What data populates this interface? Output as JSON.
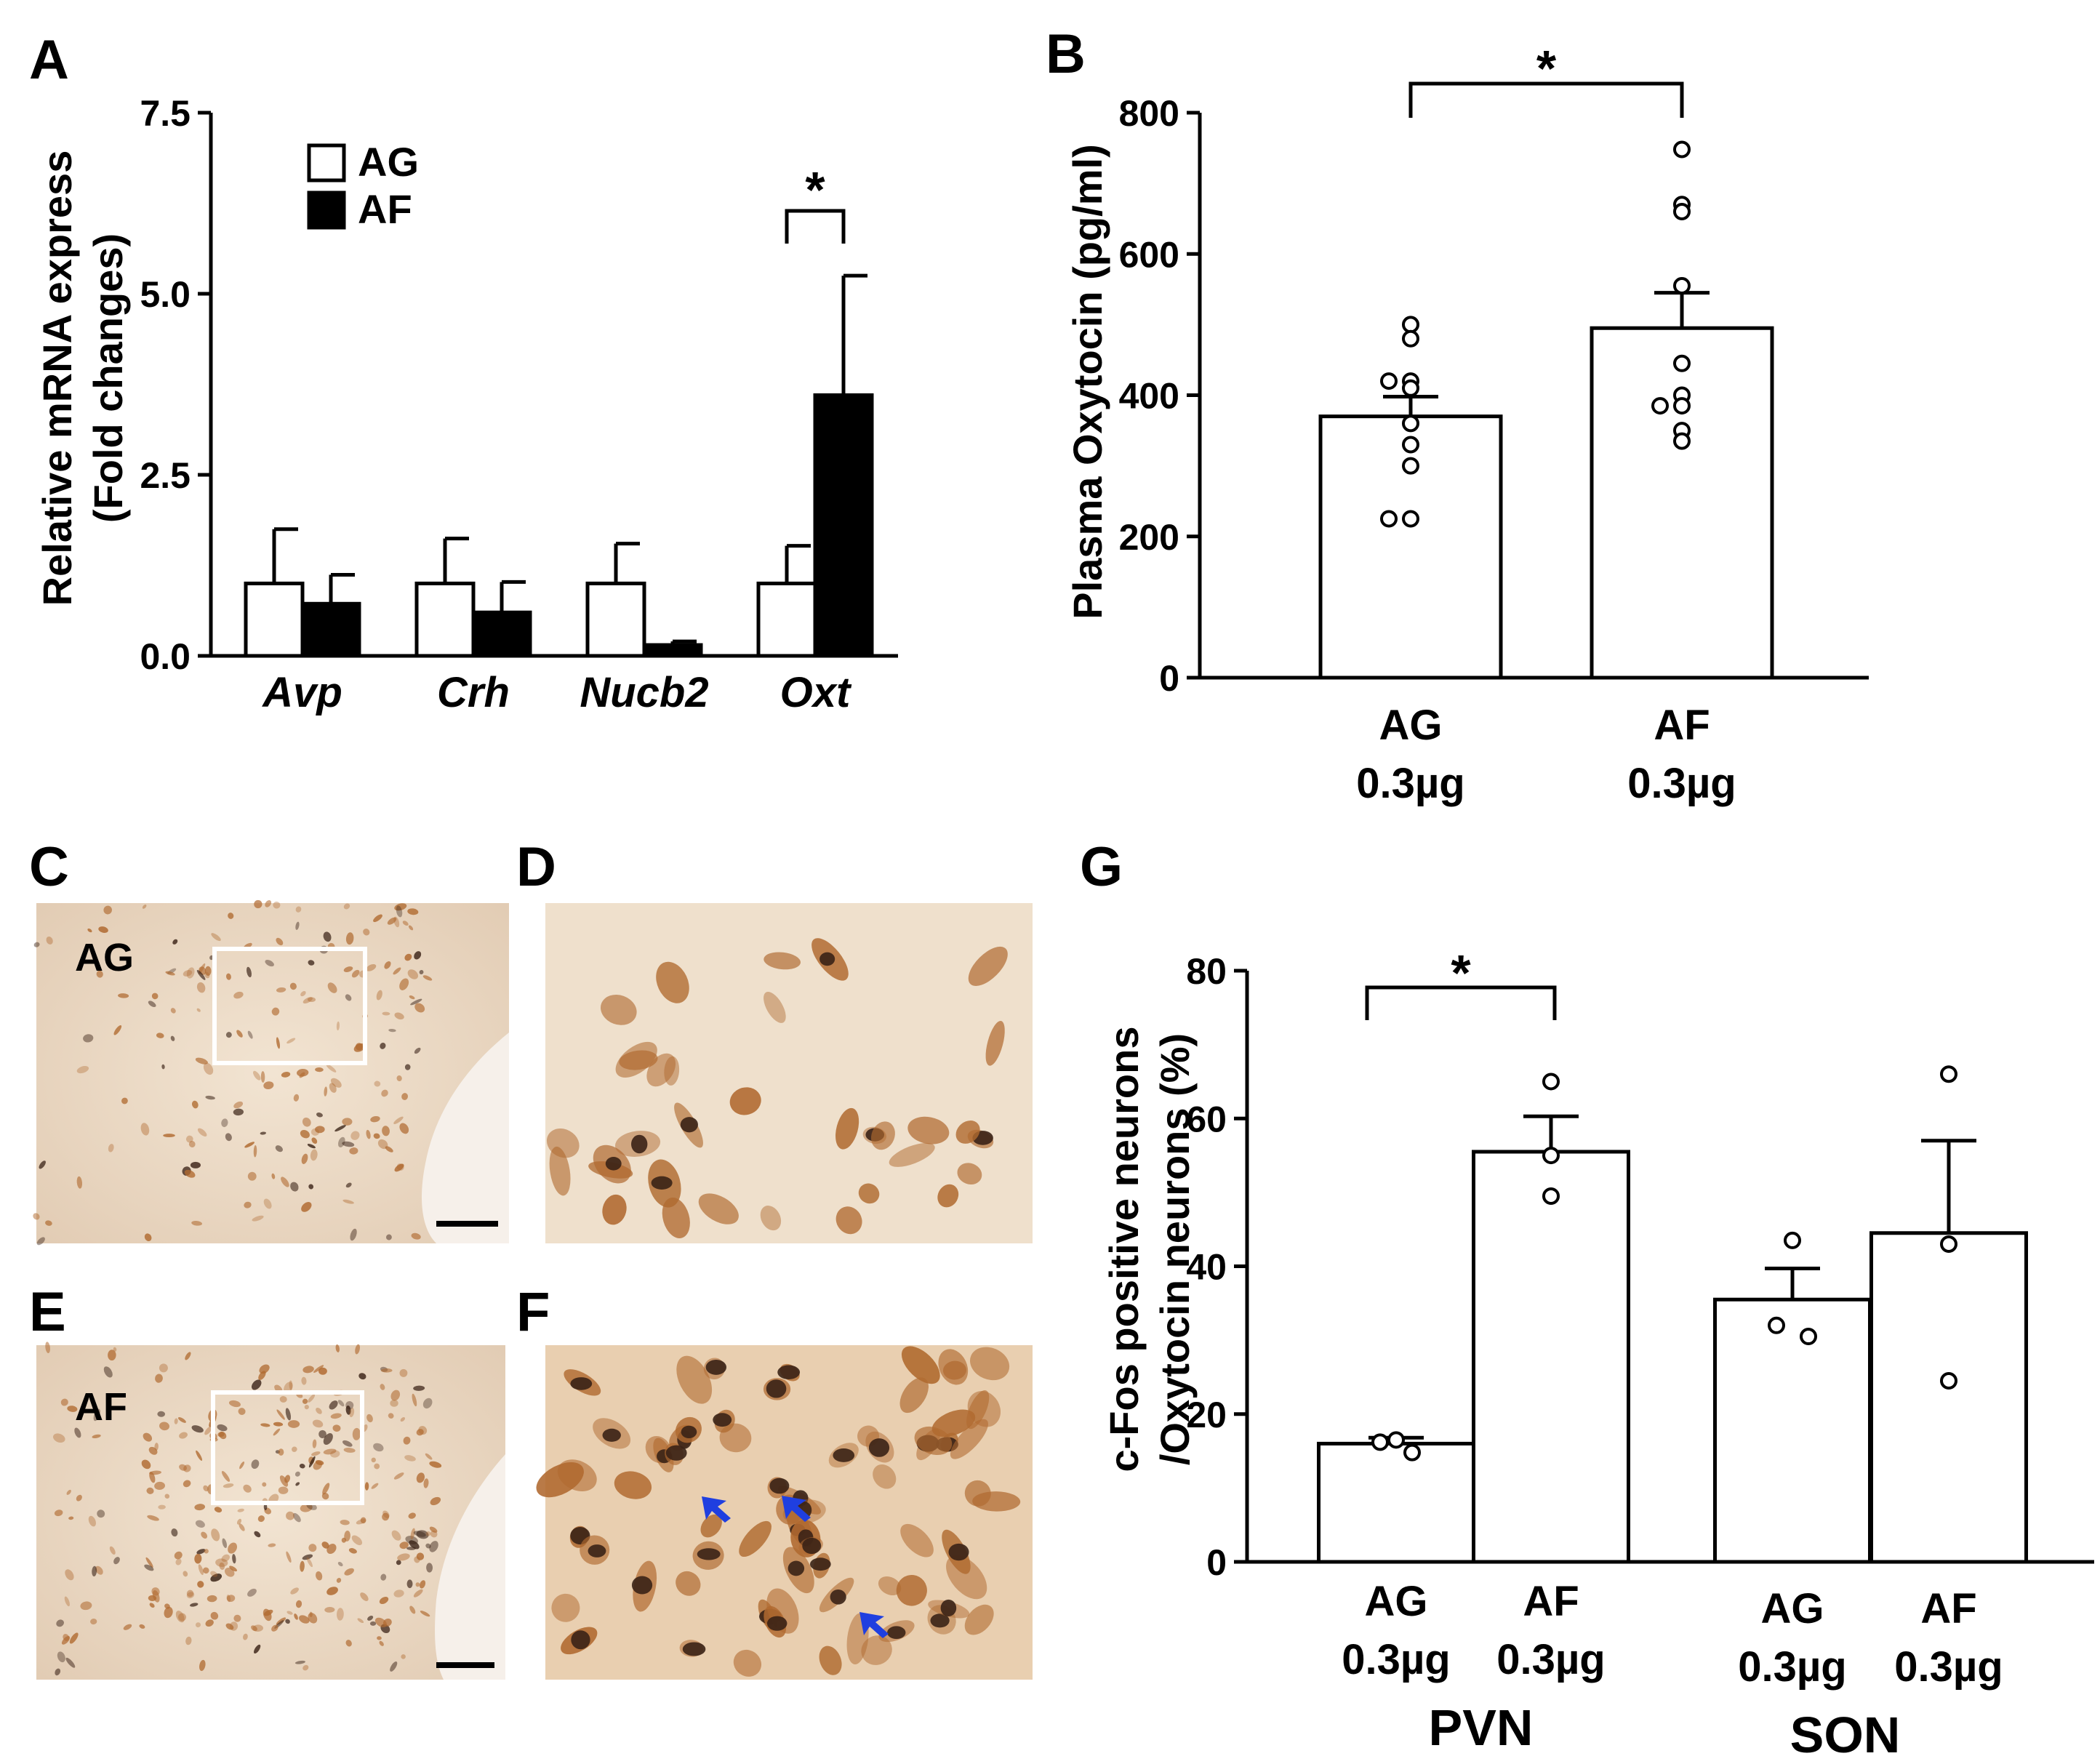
{
  "panels": {
    "A": "A",
    "B": "B",
    "C": "C",
    "D": "D",
    "E": "E",
    "F": "F",
    "G": "G"
  },
  "colors": {
    "ink": "#000000",
    "tissue_background": "#e8d6c2",
    "tissue_light": "#f0e2d0",
    "neuron_stain": "#b06a30",
    "nucleus_stain": "#3a2216",
    "arrow": "#1f3fe0",
    "frame": "#ffffff"
  },
  "micrographs": {
    "C": {
      "label": "AG",
      "has_inset_box": true,
      "has_scalebar": true
    },
    "D": {
      "label": "",
      "has_inset_box": false,
      "has_scalebar": false
    },
    "E": {
      "label": "AF",
      "has_inset_box": true,
      "has_scalebar": true
    },
    "F": {
      "label": "",
      "has_inset_box": false,
      "has_scalebar": false,
      "arrows": 3,
      "arrow_icon": "blue-arrowhead-icon"
    }
  },
  "chart_data": [
    {
      "panel": "A",
      "type": "bar",
      "ylabel_line1": "Relative mRNA express",
      "ylabel_line2": "(Fold changes)",
      "ylim": [
        0,
        7.5
      ],
      "yticks": [
        "0.0",
        "2.5",
        "5.0",
        "7.5"
      ],
      "ytick_values": [
        0,
        2.5,
        5.0,
        7.5
      ],
      "categories": [
        "Avp",
        "Crh",
        "Nucb2",
        "Oxt"
      ],
      "legend": [
        "AG",
        "AF"
      ],
      "legend_position": "top-left",
      "series": [
        {
          "name": "AG",
          "color": "#ffffff",
          "values": [
            1.0,
            1.0,
            1.0,
            1.0
          ],
          "errors": [
            0.75,
            0.62,
            0.55,
            0.52
          ]
        },
        {
          "name": "AF",
          "color": "#000000",
          "values": [
            0.72,
            0.6,
            0.15,
            3.6
          ],
          "errors": [
            0.4,
            0.42,
            0.05,
            1.65
          ]
        }
      ],
      "significance": [
        {
          "category": "Oxt",
          "label": "*"
        }
      ]
    },
    {
      "panel": "B",
      "type": "bar",
      "ylabel": "Plasma Oxytocin  (pg/ml)",
      "ylim": [
        0,
        800
      ],
      "yticks": [
        "0",
        "200",
        "400",
        "600",
        "800"
      ],
      "ytick_values": [
        0,
        200,
        400,
        600,
        800
      ],
      "categories": [
        {
          "line1": "AG",
          "line2": "0.3µg"
        },
        {
          "line1": "AF",
          "line2": "0.3µg"
        }
      ],
      "values": [
        370,
        495
      ],
      "errors": [
        28,
        50
      ],
      "points": [
        [
          500,
          480,
          420,
          420,
          410,
          360,
          330,
          300,
          225,
          225
        ],
        [
          748,
          670,
          660,
          555,
          445,
          400,
          385,
          385,
          350,
          335
        ]
      ],
      "significance": [
        {
          "between": [
            0,
            1
          ],
          "label": "*"
        }
      ]
    },
    {
      "panel": "G",
      "type": "bar",
      "ylabel_line1": "c-Fos positive neurons",
      "ylabel_line2": "/Oxytocin neurons (%)",
      "ylim": [
        0,
        80
      ],
      "yticks": [
        "0",
        "20",
        "40",
        "60",
        "80"
      ],
      "ytick_values": [
        0,
        20,
        40,
        60,
        80
      ],
      "categories": [
        {
          "line1": "AG",
          "line2": "0.3µg"
        },
        {
          "line1": "AF",
          "line2": "0.3µg"
        },
        {
          "line1": "AG",
          "line2": "0.3µg"
        },
        {
          "line1": "AF",
          "line2": "0.3µg"
        }
      ],
      "groups": [
        "PVN",
        "SON"
      ],
      "values": [
        16,
        55.5,
        35.5,
        44.5
      ],
      "errors": [
        0.8,
        4.8,
        4.2,
        12.5
      ],
      "points": [
        [
          16.5,
          16.2,
          14.8
        ],
        [
          65,
          55,
          49.5
        ],
        [
          43.5,
          32,
          30.5
        ],
        [
          66,
          43,
          24.5
        ]
      ],
      "significance": [
        {
          "between": [
            0,
            1
          ],
          "label": "*"
        }
      ]
    }
  ]
}
